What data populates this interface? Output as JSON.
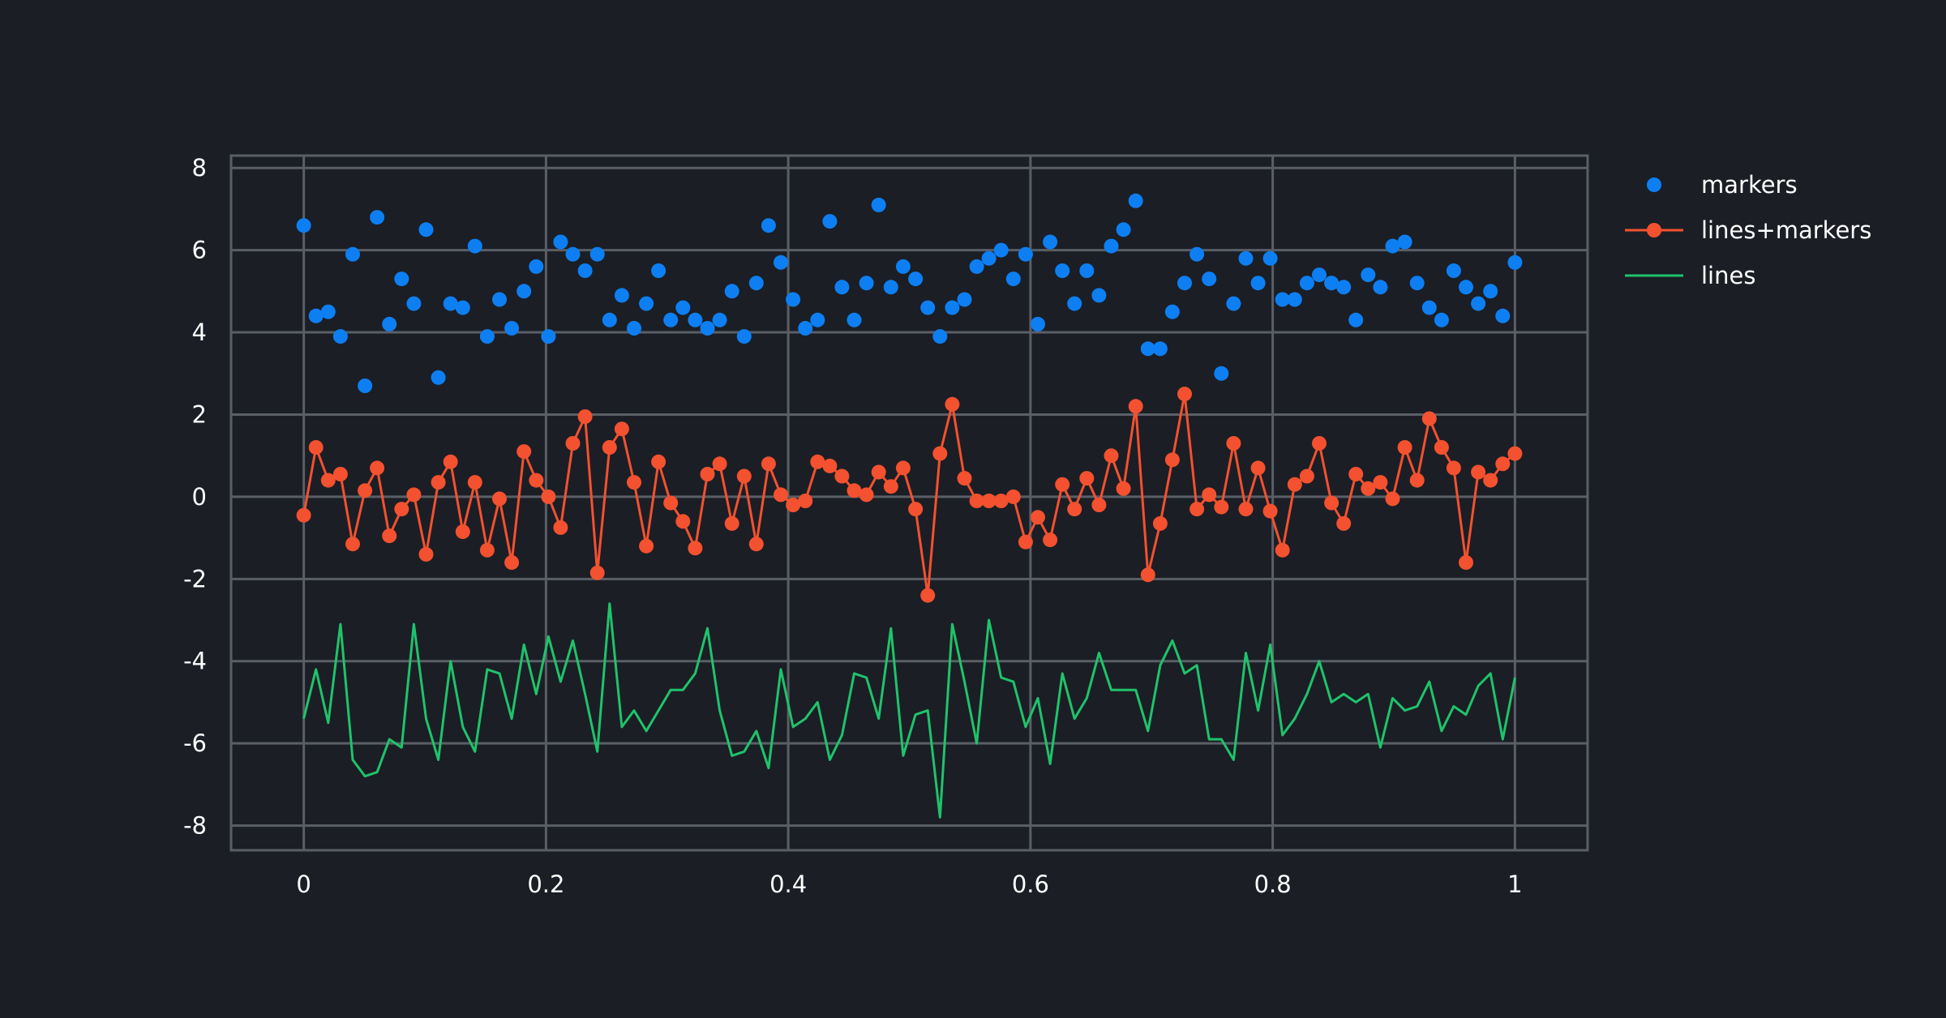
{
  "chart_data": {
    "type": "line",
    "title": "",
    "xlabel": "",
    "ylabel": "",
    "xlim": [
      -0.06,
      1.06
    ],
    "ylim": [
      -8.6,
      8.3
    ],
    "xticks": [
      0,
      0.2,
      0.4,
      0.6,
      0.8,
      1
    ],
    "xtick_labels": [
      "0",
      "0.2",
      "0.4",
      "0.6",
      "0.8",
      "1"
    ],
    "yticks": [
      8,
      6,
      4,
      2,
      0,
      -2,
      -4,
      -6,
      -8
    ],
    "ytick_labels": [
      "8",
      "6",
      "4",
      "2",
      "0",
      "-2",
      "-4",
      "-6",
      "-8"
    ],
    "grid": true,
    "legend_position": "top-right",
    "x": [
      0,
      0.0101,
      0.0202,
      0.0303,
      0.0404,
      0.0505,
      0.0606,
      0.0707,
      0.0808,
      0.0909,
      0.101,
      0.1111,
      0.1212,
      0.1313,
      0.1414,
      0.1515,
      0.1616,
      0.1717,
      0.1818,
      0.1919,
      0.202,
      0.2121,
      0.2222,
      0.2323,
      0.2424,
      0.2525,
      0.2626,
      0.2727,
      0.2828,
      0.2929,
      0.303,
      0.3131,
      0.3232,
      0.3333,
      0.3434,
      0.3535,
      0.3636,
      0.3737,
      0.3838,
      0.3939,
      0.404,
      0.4141,
      0.4242,
      0.4343,
      0.4444,
      0.4545,
      0.4646,
      0.4747,
      0.4848,
      0.4949,
      0.5051,
      0.5152,
      0.5253,
      0.5354,
      0.5455,
      0.5556,
      0.5657,
      0.5758,
      0.5859,
      0.596,
      0.6061,
      0.6162,
      0.6263,
      0.6364,
      0.6465,
      0.6566,
      0.6667,
      0.6768,
      0.6869,
      0.697,
      0.7071,
      0.7172,
      0.7273,
      0.7374,
      0.7475,
      0.7576,
      0.7677,
      0.7778,
      0.7879,
      0.798,
      0.8081,
      0.8182,
      0.8283,
      0.8384,
      0.8485,
      0.8586,
      0.8687,
      0.8788,
      0.8889,
      0.899,
      0.9091,
      0.9192,
      0.9293,
      0.9394,
      0.9495,
      0.9596,
      0.9697,
      0.9798,
      0.9899,
      1.0
    ],
    "series": [
      {
        "name": "markers",
        "mode": "markers",
        "color": "#0d7ff2",
        "values": [
          6.6,
          4.4,
          4.5,
          3.9,
          5.9,
          2.7,
          6.8,
          4.2,
          5.3,
          4.7,
          6.5,
          2.9,
          4.7,
          4.6,
          6.1,
          3.9,
          4.8,
          4.1,
          5.0,
          5.6,
          3.9,
          6.2,
          5.9,
          5.5,
          5.9,
          4.3,
          4.9,
          4.1,
          4.7,
          5.5,
          4.3,
          4.6,
          4.3,
          4.1,
          4.3,
          5.0,
          3.9,
          5.2,
          6.6,
          5.7,
          4.8,
          4.1,
          4.3,
          6.7,
          5.1,
          4.3,
          5.2,
          7.1,
          5.1,
          5.6,
          5.3,
          4.6,
          3.9,
          4.6,
          4.8,
          5.6,
          5.8,
          6.0,
          5.3,
          5.9,
          4.2,
          6.2,
          5.5,
          4.7,
          5.5,
          4.9,
          6.1,
          6.5,
          7.2,
          3.6,
          3.6,
          4.5,
          5.2,
          5.9,
          5.3,
          3.0,
          4.7,
          5.8,
          5.2,
          5.8,
          4.8,
          4.8,
          5.2,
          5.4,
          5.2,
          5.1,
          4.3,
          5.4,
          5.1,
          6.1,
          6.2,
          5.2,
          4.6,
          4.3,
          5.5,
          5.1,
          4.7,
          5.0,
          4.4,
          5.7
        ]
      },
      {
        "name": "lines+markers",
        "mode": "lines+markers",
        "color": "#f3512f",
        "values": [
          -0.45,
          1.2,
          0.4,
          0.55,
          -1.15,
          0.15,
          0.7,
          -0.95,
          -0.3,
          0.05,
          -1.4,
          0.35,
          0.85,
          -0.85,
          0.35,
          -1.3,
          -0.05,
          -1.6,
          1.1,
          0.4,
          0.0,
          -0.75,
          1.3,
          1.95,
          -1.85,
          1.2,
          1.65,
          0.35,
          -1.2,
          0.85,
          -0.15,
          -0.6,
          -1.25,
          0.55,
          0.8,
          -0.65,
          0.5,
          -1.15,
          0.8,
          0.05,
          -0.2,
          -0.1,
          0.85,
          0.75,
          0.5,
          0.15,
          0.05,
          0.6,
          0.25,
          0.7,
          -0.3,
          -2.4,
          1.05,
          2.25,
          0.45,
          -0.1,
          -0.1,
          -0.1,
          0.0,
          -1.1,
          -0.5,
          -1.05,
          0.3,
          -0.3,
          0.45,
          -0.2,
          1.0,
          0.2,
          2.2,
          -1.9,
          -0.65,
          0.9,
          2.5,
          -0.3,
          0.05,
          -0.25,
          1.3,
          -0.3,
          0.7,
          -0.35,
          -1.3,
          0.3,
          0.5,
          1.3,
          -0.15,
          -0.65,
          0.55,
          0.2,
          0.35,
          -0.05,
          1.2,
          0.4,
          1.9,
          1.2,
          0.7,
          -1.6,
          0.6,
          0.4,
          0.8,
          1.05
        ]
      },
      {
        "name": "lines",
        "mode": "lines",
        "color": "#1fc36b",
        "values": [
          -5.4,
          -4.2,
          -5.5,
          -3.1,
          -6.4,
          -6.8,
          -6.7,
          -5.9,
          -6.1,
          -3.1,
          -5.4,
          -6.4,
          -4.0,
          -5.6,
          -6.2,
          -4.2,
          -4.3,
          -5.4,
          -3.6,
          -4.8,
          -3.4,
          -4.5,
          -3.5,
          -4.8,
          -6.2,
          -2.6,
          -5.6,
          -5.2,
          -5.7,
          -5.2,
          -4.7,
          -4.7,
          -4.3,
          -3.2,
          -5.2,
          -6.3,
          -6.2,
          -5.7,
          -6.6,
          -4.2,
          -5.6,
          -5.4,
          -5.0,
          -6.4,
          -5.8,
          -4.3,
          -4.4,
          -5.4,
          -3.2,
          -6.3,
          -5.3,
          -5.2,
          -7.8,
          -3.1,
          -4.5,
          -6.0,
          -3.0,
          -4.4,
          -4.5,
          -5.6,
          -4.9,
          -6.5,
          -4.3,
          -5.4,
          -4.9,
          -3.8,
          -4.7,
          -4.7,
          -4.7,
          -5.7,
          -4.1,
          -3.5,
          -4.3,
          -4.1,
          -5.9,
          -5.9,
          -6.4,
          -3.8,
          -5.2,
          -3.6,
          -5.8,
          -5.4,
          -4.8,
          -4.0,
          -5.0,
          -4.8,
          -5.0,
          -4.8,
          -6.1,
          -4.9,
          -5.2,
          -5.1,
          -4.5,
          -5.7,
          -5.1,
          -5.3,
          -4.6,
          -4.3,
          -5.9,
          -4.4
        ]
      }
    ]
  }
}
